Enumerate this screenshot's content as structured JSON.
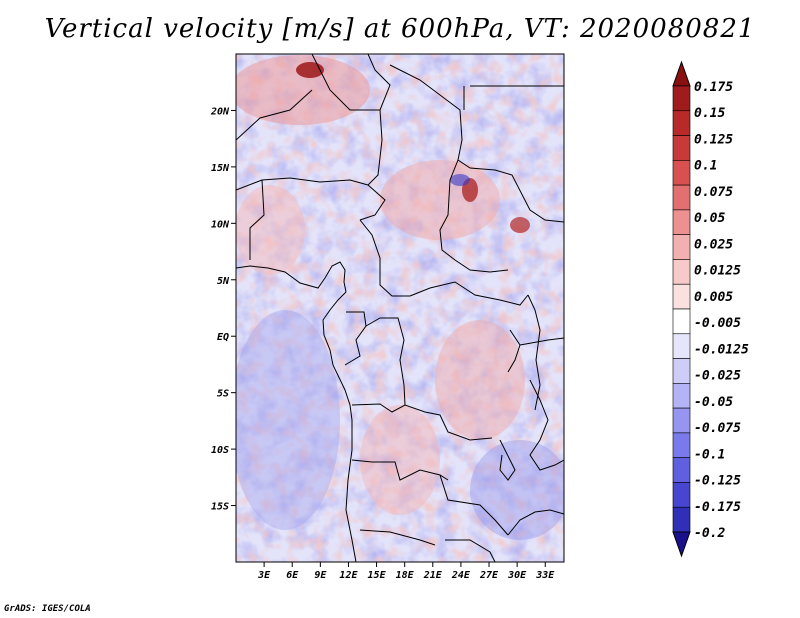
{
  "title": "Vertical velocity [m/s] at 600hPa, VT: 2020080821",
  "credit": "GrADS: IGES/COLA",
  "map": {
    "lon_range": [
      0,
      35
    ],
    "lat_range": [
      -20,
      25
    ],
    "lat_ticks": [
      {
        "value": 20,
        "label": "20N"
      },
      {
        "value": 15,
        "label": "15N"
      },
      {
        "value": 10,
        "label": "10N"
      },
      {
        "value": 5,
        "label": "5N"
      },
      {
        "value": 0,
        "label": "EQ"
      },
      {
        "value": -5,
        "label": "5S"
      },
      {
        "value": -10,
        "label": "10S"
      },
      {
        "value": -15,
        "label": "15S"
      }
    ],
    "lon_ticks": [
      {
        "value": 3,
        "label": "3E"
      },
      {
        "value": 6,
        "label": "6E"
      },
      {
        "value": 9,
        "label": "9E"
      },
      {
        "value": 12,
        "label": "12E"
      },
      {
        "value": 15,
        "label": "15E"
      },
      {
        "value": 18,
        "label": "18E"
      },
      {
        "value": 21,
        "label": "21E"
      },
      {
        "value": 24,
        "label": "24E"
      },
      {
        "value": 27,
        "label": "27E"
      },
      {
        "value": 30,
        "label": "30E"
      },
      {
        "value": 33,
        "label": "33E"
      }
    ]
  },
  "colorbar": {
    "colors": [
      "#1a0f8c",
      "#2f2fb8",
      "#4646d0",
      "#5f5fe0",
      "#7a7aec",
      "#9696f0",
      "#b3b3f5",
      "#cdcdf8",
      "#e6e6fb",
      "#ffffff",
      "#fbe0e0",
      "#f7c9c9",
      "#f3b0b0",
      "#ec9090",
      "#e27070",
      "#d85050",
      "#c83a3a",
      "#b82a2a",
      "#a01c1c",
      "#8a1010"
    ],
    "labels": [
      "0.175",
      "0.15",
      "0.125",
      "0.1",
      "0.075",
      "0.05",
      "0.025",
      "0.0125",
      "0.005",
      "-0.005",
      "-0.0125",
      "-0.025",
      "-0.05",
      "-0.075",
      "-0.1",
      "-0.125",
      "-0.175",
      "-0.2"
    ]
  }
}
